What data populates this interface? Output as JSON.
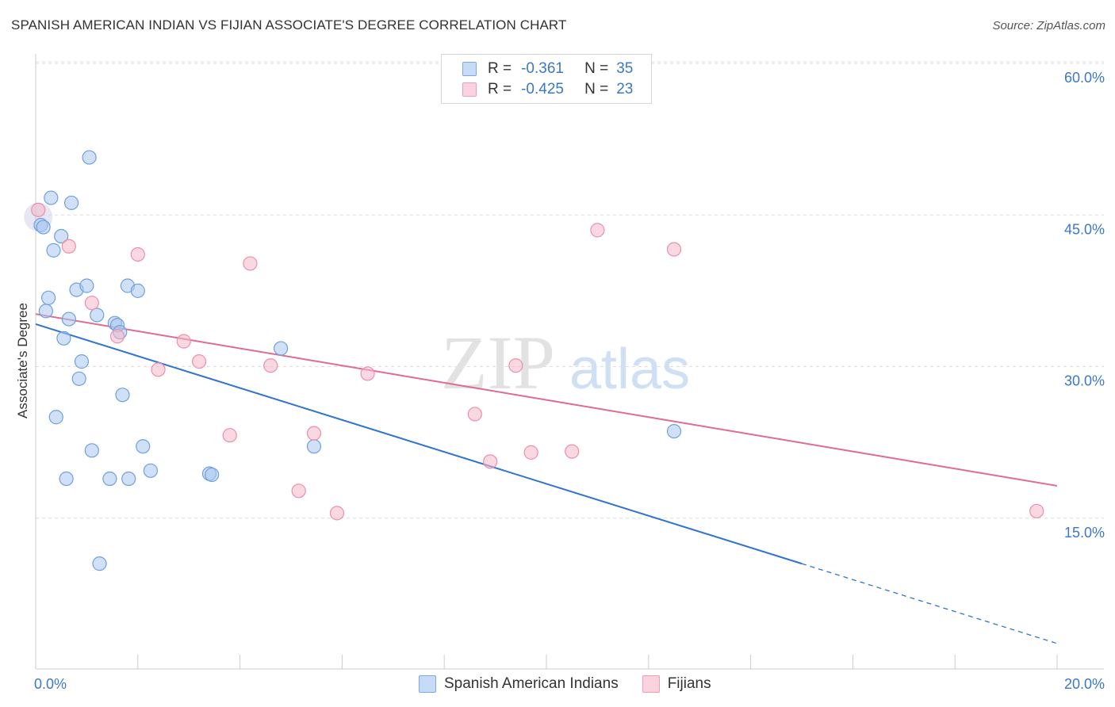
{
  "header": {
    "title": "SPANISH AMERICAN INDIAN VS FIJIAN ASSOCIATE'S DEGREE CORRELATION CHART",
    "source": "Source: ZipAtlas.com"
  },
  "watermark": {
    "zip": "ZIP",
    "atlas": "atlas"
  },
  "legend": {
    "rows": [
      {
        "r_label": "R =",
        "r_value": "-0.361",
        "n_label": "N =",
        "n_value": "35",
        "color": "#a9c8f0"
      },
      {
        "r_label": "R =",
        "r_value": "-0.425",
        "n_label": "N =",
        "n_value": "23",
        "color": "#f6b8cb"
      }
    ]
  },
  "bottom_legend": {
    "items": [
      {
        "label": "Spanish American Indians",
        "color": "#a9c8f0"
      },
      {
        "label": "Fijians",
        "color": "#f6b8cb"
      }
    ]
  },
  "chart_data": {
    "type": "scatter",
    "title": "SPANISH AMERICAN INDIAN VS FIJIAN ASSOCIATE'S DEGREE CORRELATION CHART",
    "xlabel": "",
    "ylabel": "Associate's Degree",
    "xlim": [
      0,
      20
    ],
    "ylim": [
      0,
      63
    ],
    "x_tick_labels": [
      "0.0%",
      "20.0%"
    ],
    "y_ticks": [
      15,
      30,
      45,
      60
    ],
    "y_tick_labels": [
      "15.0%",
      "30.0%",
      "45.0%",
      "60.0%"
    ],
    "grid": true,
    "series": [
      {
        "name": "Spanish American Indians",
        "color": "#a9c8f0",
        "stroke": "#6fa0de",
        "points": [
          [
            0.1,
            44.0
          ],
          [
            0.15,
            43.8
          ],
          [
            0.2,
            35.5
          ],
          [
            0.25,
            36.8
          ],
          [
            0.3,
            46.7
          ],
          [
            0.35,
            41.5
          ],
          [
            0.4,
            25.0
          ],
          [
            0.5,
            42.9
          ],
          [
            0.55,
            32.8
          ],
          [
            0.6,
            18.9
          ],
          [
            0.65,
            34.7
          ],
          [
            0.7,
            46.2
          ],
          [
            0.8,
            37.6
          ],
          [
            0.85,
            28.8
          ],
          [
            0.9,
            30.5
          ],
          [
            1.0,
            38.0
          ],
          [
            1.05,
            50.7
          ],
          [
            1.1,
            21.7
          ],
          [
            1.2,
            35.1
          ],
          [
            1.25,
            10.5
          ],
          [
            1.45,
            18.9
          ],
          [
            1.55,
            34.3
          ],
          [
            1.6,
            34.1
          ],
          [
            1.65,
            33.4
          ],
          [
            1.7,
            27.2
          ],
          [
            1.8,
            38.0
          ],
          [
            1.82,
            18.9
          ],
          [
            2.0,
            37.5
          ],
          [
            2.1,
            22.1
          ],
          [
            2.25,
            19.7
          ],
          [
            3.4,
            19.4
          ],
          [
            3.45,
            19.3
          ],
          [
            4.8,
            31.8
          ],
          [
            5.45,
            22.1
          ],
          [
            12.5,
            23.6
          ]
        ],
        "trend": {
          "x0": 0,
          "y0": 34.2,
          "x1": 15.0,
          "y1": 10.5,
          "dash_to_x": 20.0,
          "dash_to_y": 2.6
        }
      },
      {
        "name": "Fijians",
        "color": "#f6b8cb",
        "stroke": "#eb8fac",
        "points": [
          [
            0.05,
            45.5
          ],
          [
            0.65,
            41.9
          ],
          [
            1.1,
            36.3
          ],
          [
            1.6,
            33.0
          ],
          [
            2.0,
            41.1
          ],
          [
            2.4,
            29.7
          ],
          [
            2.9,
            32.5
          ],
          [
            3.2,
            30.5
          ],
          [
            3.8,
            23.2
          ],
          [
            4.2,
            40.2
          ],
          [
            4.6,
            30.1
          ],
          [
            5.15,
            17.7
          ],
          [
            5.45,
            23.4
          ],
          [
            5.9,
            15.5
          ],
          [
            6.5,
            29.3
          ],
          [
            8.6,
            25.3
          ],
          [
            8.9,
            20.6
          ],
          [
            9.4,
            30.1
          ],
          [
            9.7,
            21.5
          ],
          [
            10.5,
            21.6
          ],
          [
            11.0,
            43.5
          ],
          [
            12.5,
            41.6
          ],
          [
            19.6,
            15.7
          ]
        ],
        "trend": {
          "x0": 0,
          "y0": 35.2,
          "x1": 20.0,
          "y1": 18.2
        }
      }
    ]
  }
}
